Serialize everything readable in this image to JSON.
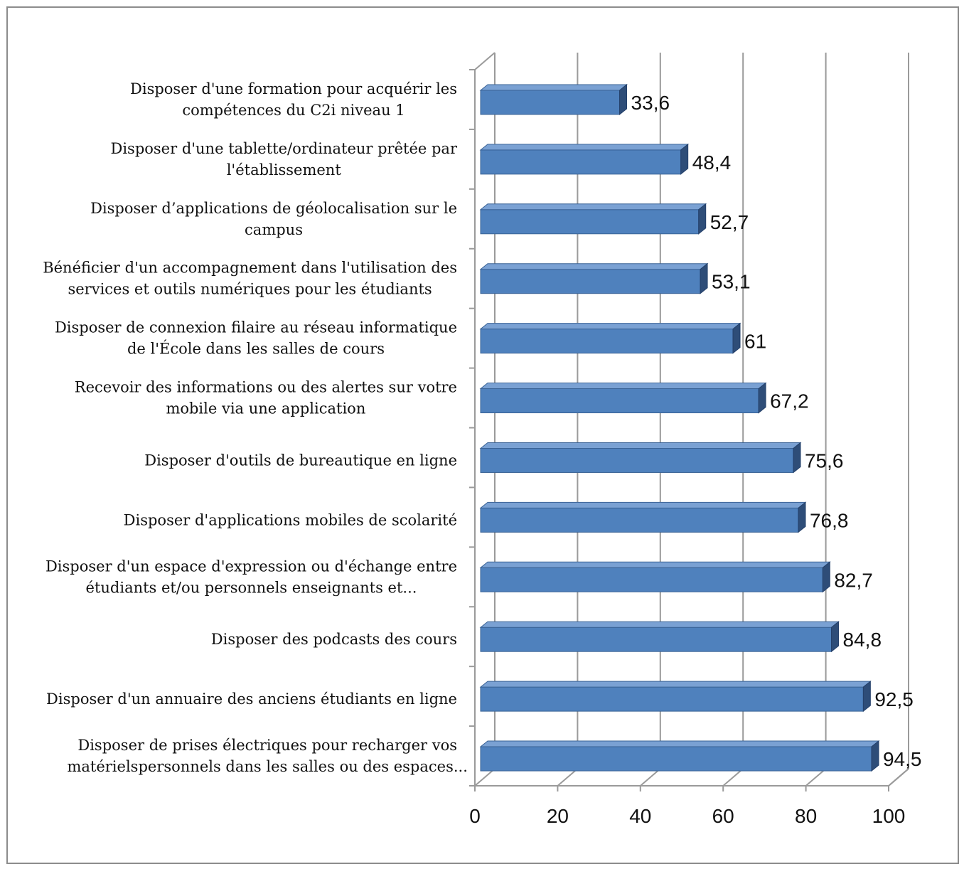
{
  "chart_data": {
    "type": "bar",
    "orientation": "horizontal",
    "style": "3d",
    "title": "",
    "xlabel": "",
    "ylabel": "",
    "xlim": [
      0,
      100
    ],
    "x_ticks": [
      "0",
      "20",
      "40",
      "60",
      "80",
      "100"
    ],
    "grid": true,
    "legend": "none",
    "bar_color": "#4f81bd",
    "categories": [
      [
        "Disposer d'une formation pour acquérir les",
        "compétences du C2i niveau 1"
      ],
      [
        "Disposer d'une tablette/ordinateur prêtée par",
        "l'établissement"
      ],
      [
        "Disposer d’applications de géolocalisation sur le",
        "campus"
      ],
      [
        "Bénéficier d'un accompagnement dans l'utilisation des",
        "services et outils numériques pour les étudiants"
      ],
      [
        "Disposer de connexion filaire au réseau informatique",
        "de l'École dans les salles de cours"
      ],
      [
        "Recevoir des informations ou des alertes sur votre",
        "mobile via une application"
      ],
      [
        "Disposer d'outils de bureautique en ligne"
      ],
      [
        "Disposer d'applications mobiles de scolarité"
      ],
      [
        "Disposer d'un espace d'expression ou d'échange entre",
        "étudiants et/ou personnels enseignants et..."
      ],
      [
        "Disposer des podcasts des cours"
      ],
      [
        "Disposer d'un annuaire des anciens étudiants en ligne"
      ],
      [
        "Disposer de prises électriques pour recharger vos",
        "matérielspersonnels dans les salles ou des espaces..."
      ]
    ],
    "values": [
      33.6,
      48.4,
      52.7,
      53.1,
      61,
      67.2,
      75.6,
      76.8,
      82.7,
      84.8,
      92.5,
      94.5
    ],
    "value_labels": [
      "33,6",
      "48,4",
      "52,7",
      "53,1",
      "61",
      "67,2",
      "75,6",
      "76,8",
      "82,7",
      "84,8",
      "92,5",
      "94,5"
    ]
  }
}
